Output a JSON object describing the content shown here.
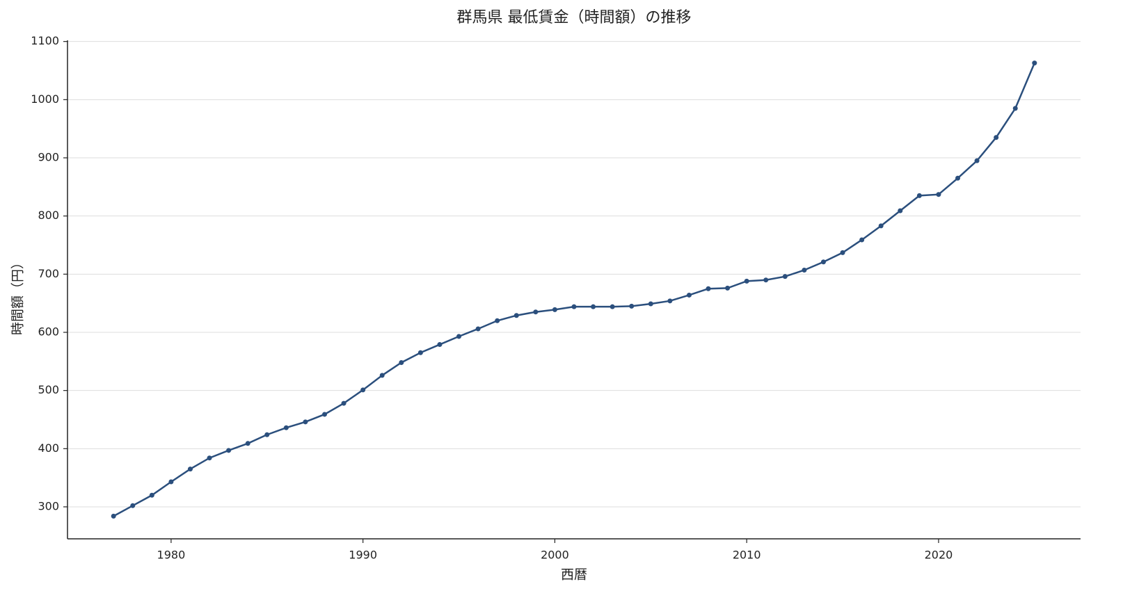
{
  "chart_data": {
    "type": "line",
    "title": "群馬県 最低賃金（時間額）の推移",
    "x_label": "西暦",
    "y_label": "時間額（円）",
    "x": [
      1977,
      1978,
      1979,
      1980,
      1981,
      1982,
      1983,
      1984,
      1985,
      1986,
      1987,
      1988,
      1989,
      1990,
      1991,
      1992,
      1993,
      1994,
      1995,
      1996,
      1997,
      1998,
      1999,
      2000,
      2001,
      2002,
      2003,
      2004,
      2005,
      2006,
      2007,
      2008,
      2009,
      2010,
      2011,
      2012,
      2013,
      2014,
      2015,
      2016,
      2017,
      2018,
      2019,
      2020,
      2021,
      2022,
      2023,
      2024,
      2025
    ],
    "series": [
      {
        "color": "#2b4f7d",
        "values": [
          284,
          302,
          320,
          343,
          365,
          384,
          397,
          409,
          424,
          436,
          446,
          459,
          478,
          501,
          526,
          548,
          565,
          579,
          593,
          606,
          620,
          629,
          635,
          639,
          644,
          644,
          644,
          645,
          649,
          654,
          664,
          675,
          676,
          688,
          690,
          696,
          707,
          721,
          737,
          759,
          783,
          809,
          835,
          837,
          865,
          895,
          935,
          985,
          1063
        ]
      }
    ],
    "xlim": [
      1974.6,
      2027.4
    ],
    "xticks": [
      1980,
      1990,
      2000,
      2010,
      2020
    ],
    "ylim": [
      245,
      1102
    ],
    "yticks": [
      300,
      400,
      500,
      600,
      700,
      800,
      900,
      1000,
      1100
    ],
    "grid": true
  }
}
